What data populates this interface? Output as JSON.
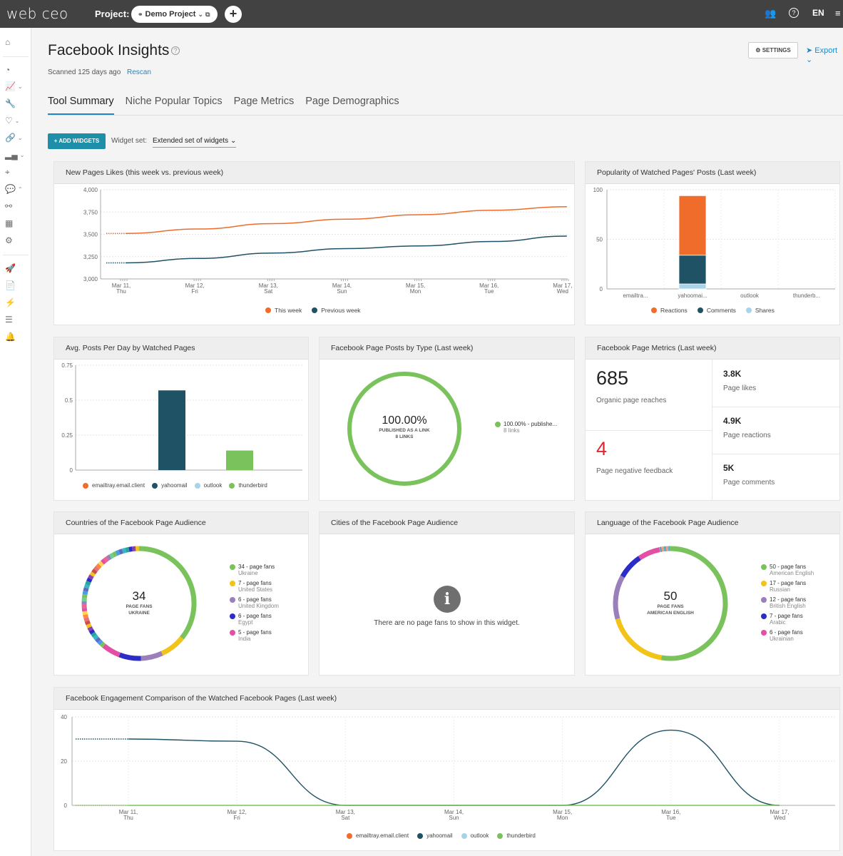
{
  "topbar": {
    "logo": "web ceo",
    "project_label": "Project:",
    "project_name": "Demo Project",
    "add": "+",
    "lang": "EN"
  },
  "page": {
    "title": "Facebook Insights",
    "scanned": "Scanned 125 days ago",
    "rescan": "Rescan",
    "settings": "SETTINGS",
    "export": "Export",
    "tabs": [
      "Tool Summary",
      "Niche Popular Topics",
      "Page Metrics",
      "Page Demographics"
    ],
    "add_widgets": "+ ADD WIDGETS",
    "widget_set_label": "Widget set:",
    "widget_set_value": "Extended set of widgets"
  },
  "colors": {
    "orange": "#ef6c2a",
    "navy": "#1f5264",
    "lightblue": "#a8d4ea",
    "green": "#7ac35c",
    "accent": "#1e88c9"
  },
  "widgets": {
    "new_likes": {
      "title": "New Pages Likes (this week vs. previous week)",
      "legend": [
        "This week",
        "Previous week"
      ],
      "chart_data": {
        "type": "line",
        "categories": [
          "Mar 11, Thu",
          "Mar 12, Fri",
          "Mar 13, Sat",
          "Mar 14, Sun",
          "Mar 15, Mon",
          "Mar 16, Tue",
          "Mar 17, Wed"
        ],
        "ylim": [
          3000,
          4000
        ],
        "yticks": [
          "4,000",
          "3,750",
          "3,500",
          "3,250",
          "3,000"
        ],
        "series": [
          {
            "name": "This week",
            "values": [
              3510,
              3560,
              3620,
              3670,
              3720,
              3770,
              3810
            ]
          },
          {
            "name": "Previous week",
            "values": [
              3180,
              3230,
              3290,
              3340,
              3370,
              3420,
              3480
            ]
          }
        ]
      }
    },
    "popularity": {
      "title": "Popularity of Watched Pages' Posts (Last week)",
      "legend": [
        "Reactions",
        "Comments",
        "Shares"
      ],
      "chart_data": {
        "type": "bar",
        "categories": [
          "emailtra...",
          "yahoomai...",
          "outlook",
          "thunderb..."
        ],
        "ylim": [
          0,
          100
        ],
        "yticks": [
          "100",
          "50",
          "0"
        ],
        "series": [
          {
            "name": "Reactions",
            "values": [
              0,
              60,
              0,
              0
            ]
          },
          {
            "name": "Comments",
            "values": [
              0,
              29,
              0,
              0
            ]
          },
          {
            "name": "Shares",
            "values": [
              0,
              5,
              0,
              0
            ]
          }
        ]
      }
    },
    "avg_posts": {
      "title": "Avg. Posts Per Day by Watched Pages",
      "legend": [
        "emailtray.email.client",
        "yahoomail",
        "outlook",
        "thunderbird"
      ],
      "chart_data": {
        "type": "bar",
        "categories": [
          "emailtray.email.client",
          "yahoomail",
          "outlook",
          "thunderbird"
        ],
        "values": [
          0,
          0.57,
          0,
          0.14
        ],
        "ylim": [
          0,
          0.75
        ],
        "yticks": [
          "0.75",
          "0.5",
          "0.25",
          "0"
        ]
      }
    },
    "posts_by_type": {
      "title": "Facebook Page Posts by Type (Last week)",
      "center_value": "100.00%",
      "center_label_1": "PUBLISHED AS A LINK",
      "center_label_2": "8 LINKS",
      "legend_main": "100.00% - publishe...",
      "legend_sub": "8 links"
    },
    "page_metrics": {
      "title": "Facebook Page Metrics (Last week)",
      "organic_value": "685",
      "organic_label": "Organic page reaches",
      "negative_value": "4",
      "negative_label": "Page negative feedback",
      "likes_value": "3.8K",
      "likes_label": "Page likes",
      "reactions_value": "4.9K",
      "reactions_label": "Page reactions",
      "comments_value": "5K",
      "comments_label": "Page comments"
    },
    "countries": {
      "title": "Countries of the Facebook Page Audience",
      "center_value": "34",
      "center_label_1": "PAGE FANS",
      "center_label_2": "UKRAINE",
      "items": [
        {
          "count": "34 - page fans",
          "name": "Ukraine",
          "color": "#7ac35c"
        },
        {
          "count": "7 - page fans",
          "name": "United States",
          "color": "#f2c318"
        },
        {
          "count": "6 - page fans",
          "name": "United Kingdom",
          "color": "#9b7fba"
        },
        {
          "count": "6 - page fans",
          "name": "Egypt",
          "color": "#2c2cc8"
        },
        {
          "count": "5 - page fans",
          "name": "India",
          "color": "#e34fa4"
        }
      ]
    },
    "cities": {
      "title": "Cities of the Facebook Page Audience",
      "empty": "There are no page fans to show in this widget."
    },
    "language": {
      "title": "Language of the Facebook Page Audience",
      "center_value": "50",
      "center_label_1": "PAGE FANS",
      "center_label_2": "AMERICAN ENGLISH",
      "items": [
        {
          "count": "50 - page fans",
          "name": "American English",
          "color": "#7ac35c"
        },
        {
          "count": "17 - page fans",
          "name": "Russian",
          "color": "#f2c318"
        },
        {
          "count": "12 - page fans",
          "name": "British English",
          "color": "#9b7fba"
        },
        {
          "count": "7 - page fans",
          "name": "Arabic",
          "color": "#2c2cc8"
        },
        {
          "count": "6 - page fans",
          "name": "Ukrainian",
          "color": "#e34fa4"
        }
      ]
    },
    "engagement": {
      "title": "Facebook Engagement Comparison of the Watched Facebook Pages (Last week)",
      "legend": [
        "emailtray.email.client",
        "yahoomail",
        "outlook",
        "thunderbird"
      ],
      "chart_data": {
        "type": "line",
        "categories": [
          "Mar 11, Thu",
          "Mar 12, Fri",
          "Mar 13, Sat",
          "Mar 14, Sun",
          "Mar 15, Mon",
          "Mar 16, Tue",
          "Mar 17, Wed"
        ],
        "ylim": [
          0,
          40
        ],
        "yticks": [
          "40",
          "20",
          "0"
        ],
        "series": [
          {
            "name": "yahoomail",
            "values": [
              30,
              29,
              0,
              0,
              0,
              34,
              0
            ]
          },
          {
            "name": "thunderbird",
            "values": [
              0,
              0,
              0,
              0,
              0,
              0,
              0
            ]
          }
        ]
      }
    }
  }
}
